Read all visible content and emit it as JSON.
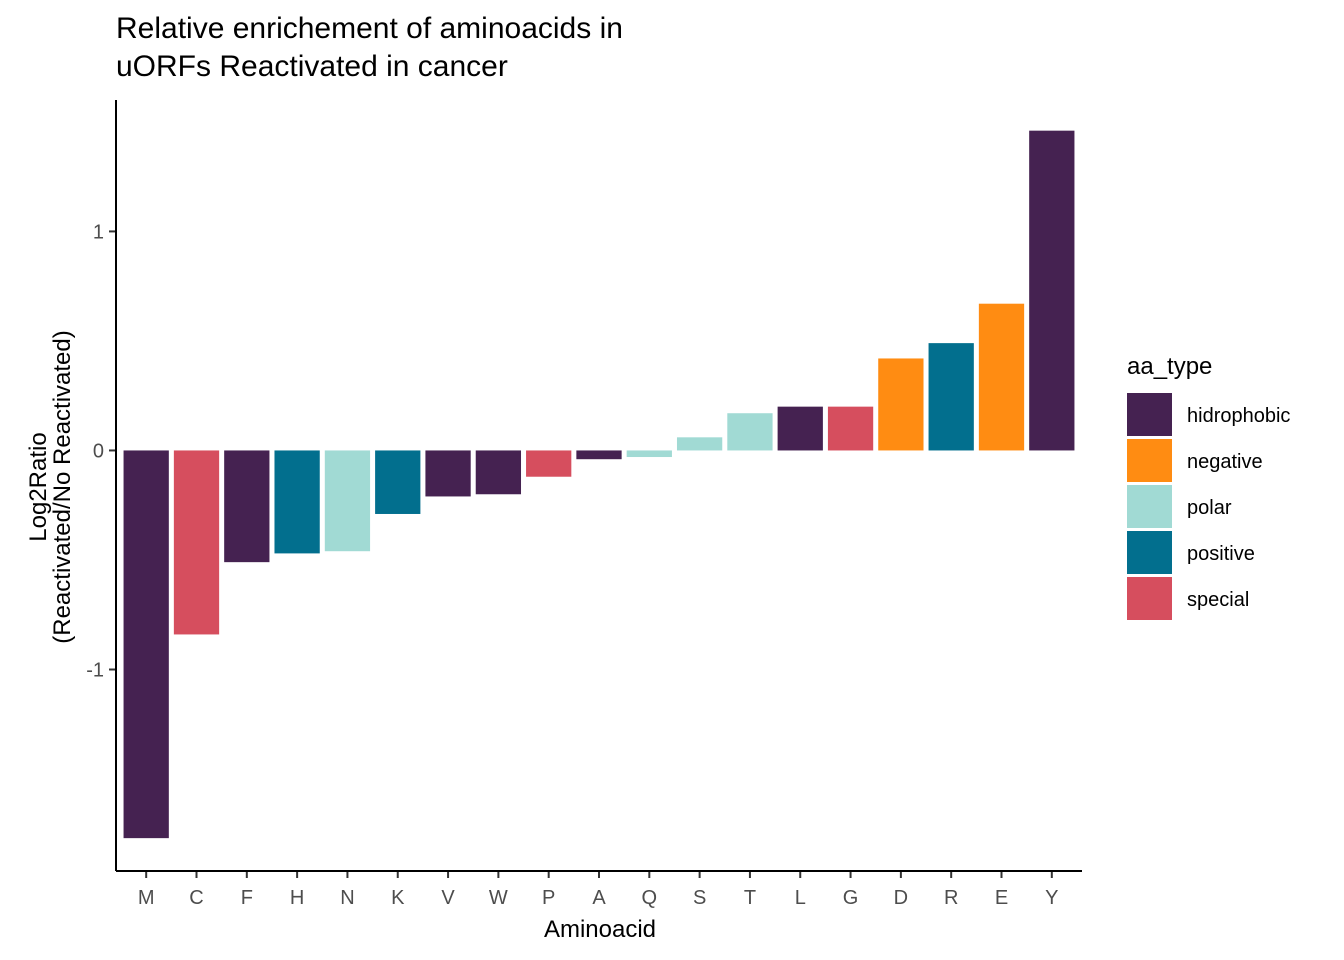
{
  "chart_data": {
    "type": "bar",
    "title_lines": [
      "Relative enrichement of aminoacids in",
      "uORFs Reactivated in cancer"
    ],
    "xlabel": "Aminoacid",
    "ylabel_lines": [
      "Log2Ratio",
      "(Reactivated/No Reactivated)"
    ],
    "ylim": [
      -1.92,
      1.6
    ],
    "yticks": [
      -1,
      0,
      1
    ],
    "ytick_labels": [
      "-1",
      "0",
      "1"
    ],
    "grid": false,
    "legend_position": "right",
    "legend_title": "aa_type",
    "legend": [
      {
        "key": "hidrophobic",
        "label": "hidrophobic",
        "color": "#452251"
      },
      {
        "key": "negative",
        "label": "negative",
        "color": "#FF8C12"
      },
      {
        "key": "polar",
        "label": "polar",
        "color": "#A1DAD4"
      },
      {
        "key": "positive",
        "label": "positive",
        "color": "#026F8E"
      },
      {
        "key": "special",
        "label": "special",
        "color": "#D64E5E"
      }
    ],
    "categories": [
      "M",
      "C",
      "F",
      "H",
      "N",
      "K",
      "V",
      "W",
      "P",
      "A",
      "Q",
      "S",
      "T",
      "L",
      "G",
      "D",
      "R",
      "E",
      "Y"
    ],
    "values": [
      -1.77,
      -0.84,
      -0.51,
      -0.47,
      -0.46,
      -0.29,
      -0.21,
      -0.2,
      -0.12,
      -0.04,
      -0.03,
      0.06,
      0.17,
      0.2,
      0.2,
      0.42,
      0.49,
      0.67,
      1.46
    ],
    "groups": [
      "hidrophobic",
      "special",
      "hidrophobic",
      "positive",
      "polar",
      "positive",
      "hidrophobic",
      "hidrophobic",
      "special",
      "hidrophobic",
      "polar",
      "polar",
      "polar",
      "hidrophobic",
      "special",
      "negative",
      "positive",
      "negative",
      "hidrophobic"
    ]
  }
}
